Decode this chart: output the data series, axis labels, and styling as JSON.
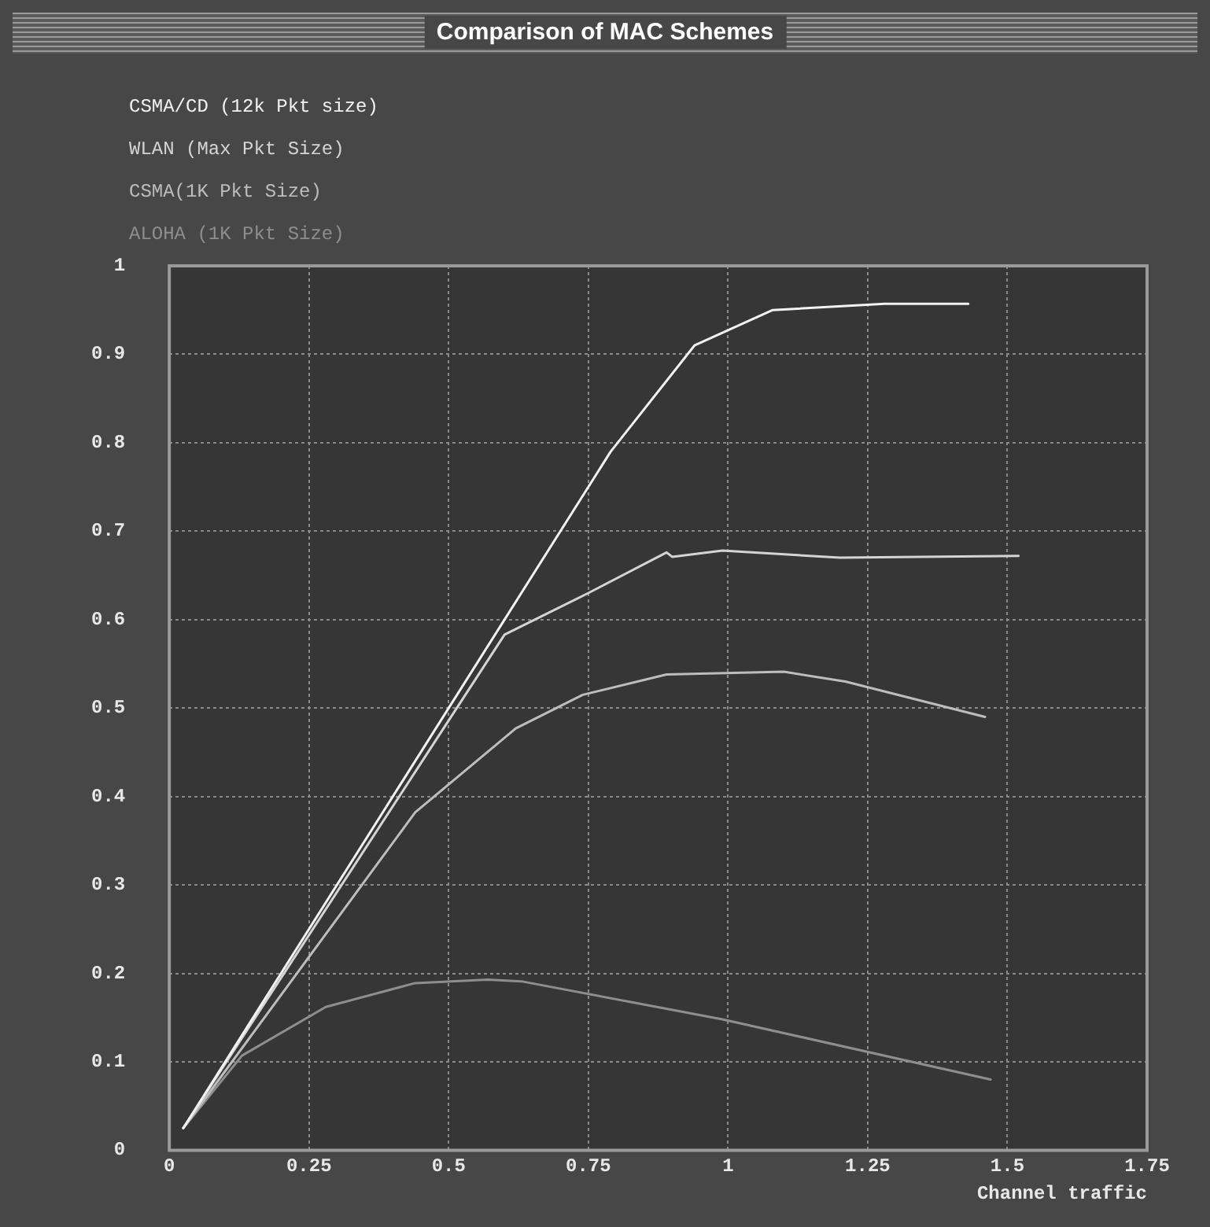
{
  "chart_data": {
    "type": "line",
    "title": "Comparison of MAC Schemes",
    "xlabel": "Channel traffic",
    "xlim": [
      0,
      1.75
    ],
    "xticks": [
      0,
      0.25,
      0.5,
      0.75,
      1,
      1.25,
      1.5,
      1.75
    ],
    "ylim": [
      0,
      1
    ],
    "yticks": [
      0,
      0.1,
      0.2,
      0.3,
      0.4,
      0.5,
      0.6,
      0.7,
      0.8,
      0.9,
      1
    ],
    "grid": true,
    "legend": "top left",
    "marker": "none",
    "line_style": "solid",
    "series": [
      {
        "name": "CSMA/CD (12k Pkt size)",
        "color": "#f2f2f2",
        "x": [
          0.025,
          0.79,
          0.94,
          1.08,
          1.28,
          1.43
        ],
        "values": [
          0.025,
          0.79,
          0.91,
          0.95,
          0.957,
          0.957
        ]
      },
      {
        "name": "WLAN (Max Pkt Size)",
        "color": "#d4d4d4",
        "x": [
          0.025,
          0.6,
          0.75,
          0.89,
          0.9,
          0.99,
          1.2,
          1.52
        ],
        "values": [
          0.025,
          0.583,
          0.63,
          0.676,
          0.671,
          0.678,
          0.67,
          0.672
        ]
      },
      {
        "name": "CSMA(1K Pkt Size)",
        "color": "#bdbdbd",
        "x": [
          0.025,
          0.44,
          0.62,
          0.74,
          0.89,
          1.1,
          1.21,
          1.46
        ],
        "values": [
          0.025,
          0.382,
          0.477,
          0.515,
          0.538,
          0.541,
          0.53,
          0.49
        ]
      },
      {
        "name": "ALOHA (1K Pkt Size)",
        "color": "#8e8e8e",
        "x": [
          0.025,
          0.13,
          0.28,
          0.44,
          0.57,
          0.63,
          0.99,
          1.47
        ],
        "values": [
          0.025,
          0.107,
          0.162,
          0.189,
          0.193,
          0.191,
          0.148,
          0.08
        ]
      }
    ]
  }
}
